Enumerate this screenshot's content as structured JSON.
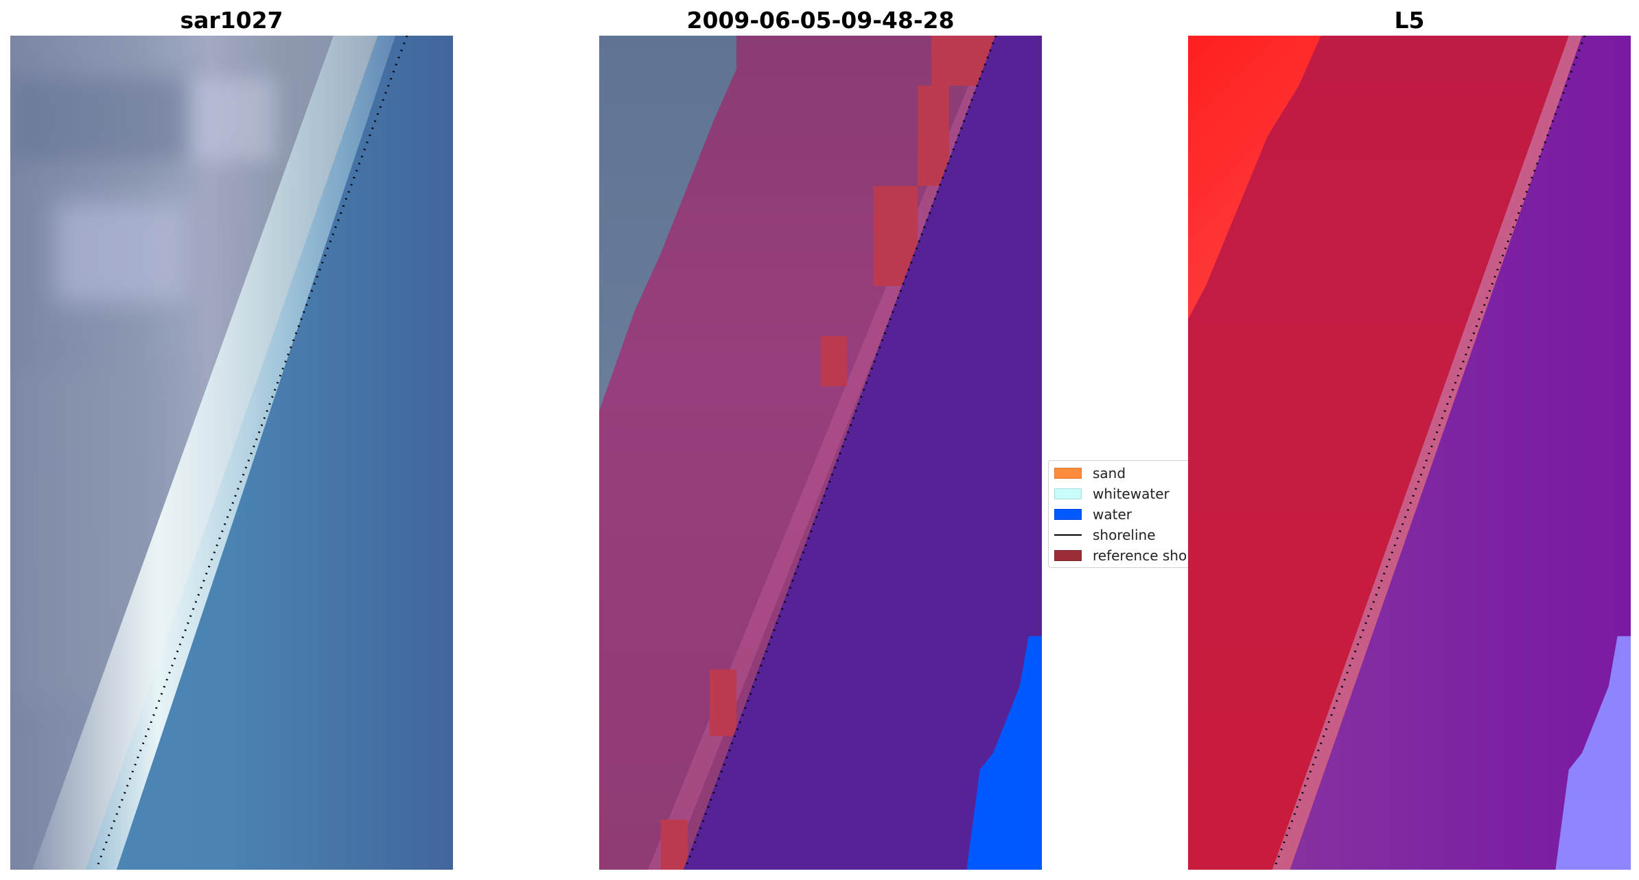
{
  "panels": [
    {
      "title": "sar1027"
    },
    {
      "title": "2009-06-05-09-48-28"
    },
    {
      "title": "L5"
    }
  ],
  "legend": {
    "items": [
      {
        "label": "sand",
        "color": "#ff8b3d",
        "kind": "patch"
      },
      {
        "label": "whitewater",
        "color": "#c9fdfd",
        "kind": "patch"
      },
      {
        "label": "water",
        "color": "#0058ff",
        "kind": "patch"
      },
      {
        "label": "shoreline",
        "color": "#000000",
        "kind": "line"
      },
      {
        "label": "reference shoreline",
        "color": "#9a2d35",
        "kind": "patch"
      }
    ]
  },
  "colors": {
    "shoreline": "#000000",
    "land_classified": "#8b3b73",
    "water_classified": "#562296",
    "false_color_land": "#c41c43",
    "false_color_water": "#7e24a2"
  }
}
